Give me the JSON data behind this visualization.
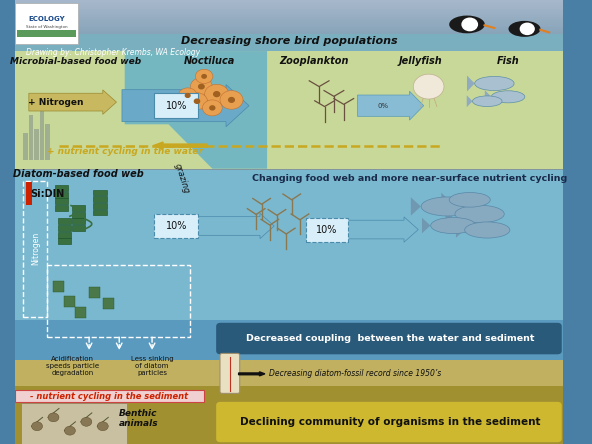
{
  "credit_text": "Drawing by: Christopher Krembs, WA Ecology",
  "header_text": "Decreasing shore bird populations",
  "upper_label": "Microbial-based food web",
  "upper_label2": "Noctiluca",
  "upper_label3": "Zooplankton",
  "upper_label4": "Jellyfish",
  "upper_label5": "Fish",
  "nitrogen_label": "+ Nitrogen",
  "nutrient_water_label": "+ nutrient cycling in the water",
  "diatom_label": "Diatom-based food web",
  "grazing_label": "grazing",
  "changing_food_label": "Changing food web and more near-surface nutrient cycling",
  "sidin_label": "Si:DIN",
  "nitrogen_side_label": "Nitrogen",
  "acidification_label": "Acidification\nspeeds particle\ndegradation",
  "less_sinking_label": "Less sinking\nof diatom\nparticles",
  "decreased_coupling_label": "Decreased coupling  between the water and sediment",
  "fossil_label": "Decreasing diatom-fossil record since 1950’s",
  "nutrient_sediment_label": "- nutrient cycling in the sediment",
  "benthic_label": "Benthic\nanimals",
  "declining_label": "Declining community of organisms in the sediment",
  "fig_width": 5.92,
  "fig_height": 4.44,
  "dpi": 100
}
